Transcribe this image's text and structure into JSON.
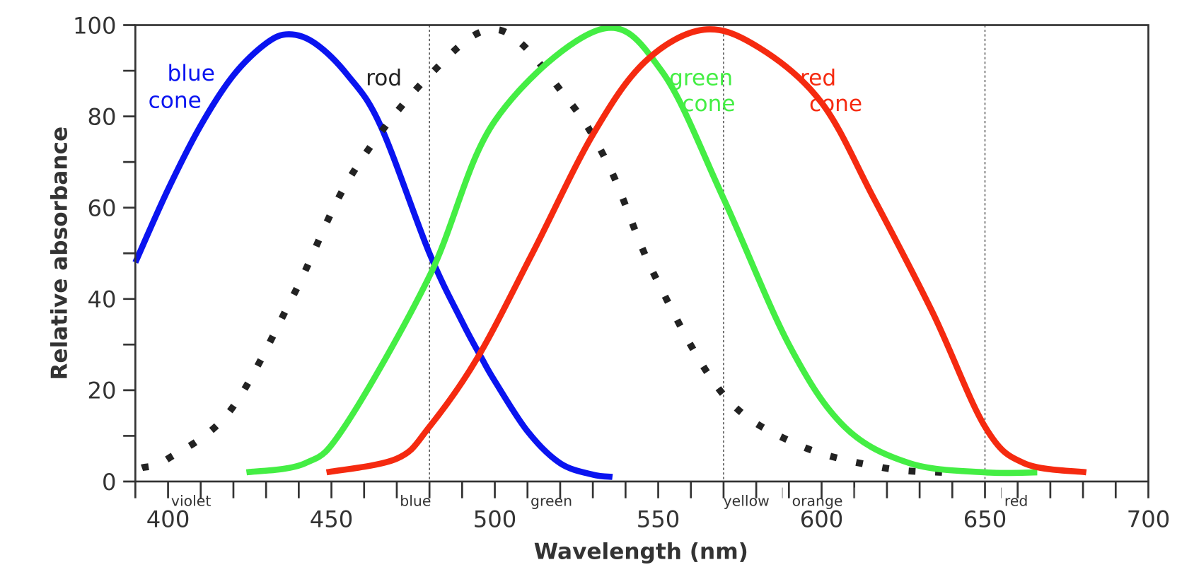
{
  "chart_data": {
    "type": "line",
    "xlabel": "Wavelength (nm)",
    "ylabel": "Relative absorbance",
    "xlim": [
      390,
      700
    ],
    "ylim": [
      0,
      100
    ],
    "x_ticks": [
      400,
      450,
      500,
      550,
      600,
      650,
      700
    ],
    "y_ticks": [
      0,
      20,
      40,
      60,
      80,
      100
    ],
    "grid": false,
    "reference_lines_x": [
      480,
      570,
      650
    ],
    "color_bands": [
      {
        "label": "violet",
        "x": 400
      },
      {
        "label": "blue",
        "x": 470
      },
      {
        "label": "green",
        "x": 510
      },
      {
        "label": "yellow",
        "x": 569
      },
      {
        "label": "orange",
        "x": 590
      },
      {
        "label": "red",
        "x": 655
      }
    ],
    "series": [
      {
        "name": "blue cone",
        "label_lines": [
          "blue",
          "cone"
        ],
        "color": "#0a14f0",
        "style": "solid",
        "points": [
          [
            390,
            48
          ],
          [
            400,
            64
          ],
          [
            410,
            78
          ],
          [
            420,
            89
          ],
          [
            430,
            96
          ],
          [
            437,
            98
          ],
          [
            445,
            96
          ],
          [
            455,
            89
          ],
          [
            465,
            78
          ],
          [
            480,
            50
          ],
          [
            490,
            35
          ],
          [
            496,
            27
          ],
          [
            500,
            22
          ],
          [
            510,
            11
          ],
          [
            520,
            4
          ],
          [
            530,
            1.5
          ],
          [
            536,
            1
          ]
        ]
      },
      {
        "name": "rod",
        "label_lines": [
          "rod"
        ],
        "color": "#222222",
        "style": "dotted",
        "points": [
          [
            392,
            3
          ],
          [
            400,
            5
          ],
          [
            419,
            15.5
          ],
          [
            438.5,
            41
          ],
          [
            456,
            67
          ],
          [
            480,
            89
          ],
          [
            501,
            99
          ],
          [
            522,
            84
          ],
          [
            535,
            69
          ],
          [
            549,
            45
          ],
          [
            570,
            19
          ],
          [
            593,
            8
          ],
          [
            619,
            3
          ],
          [
            637,
            2
          ]
        ]
      },
      {
        "name": "green cone",
        "label_lines": [
          "green",
          "cone"
        ],
        "color": "#44ee44",
        "style": "solid",
        "points": [
          [
            424,
            2
          ],
          [
            442,
            4
          ],
          [
            454,
            12
          ],
          [
            480,
            45
          ],
          [
            500,
            79
          ],
          [
            532,
            99
          ],
          [
            551,
            90
          ],
          [
            570,
            62
          ],
          [
            590,
            30
          ],
          [
            607,
            12
          ],
          [
            627,
            4
          ],
          [
            650,
            2
          ],
          [
            666,
            2
          ]
        ]
      },
      {
        "name": "red cone",
        "label_lines": [
          "red",
          "cone"
        ],
        "color": "#f52a10",
        "style": "solid",
        "points": [
          [
            448.5,
            2
          ],
          [
            470,
            5
          ],
          [
            480,
            12
          ],
          [
            494.6,
            27
          ],
          [
            511.5,
            50
          ],
          [
            530,
            76
          ],
          [
            546,
            92
          ],
          [
            564,
            99
          ],
          [
            581,
            95
          ],
          [
            600,
            83
          ],
          [
            616,
            62
          ],
          [
            634,
            37
          ],
          [
            650,
            12
          ],
          [
            662,
            4
          ],
          [
            681,
            2
          ]
        ]
      }
    ]
  }
}
